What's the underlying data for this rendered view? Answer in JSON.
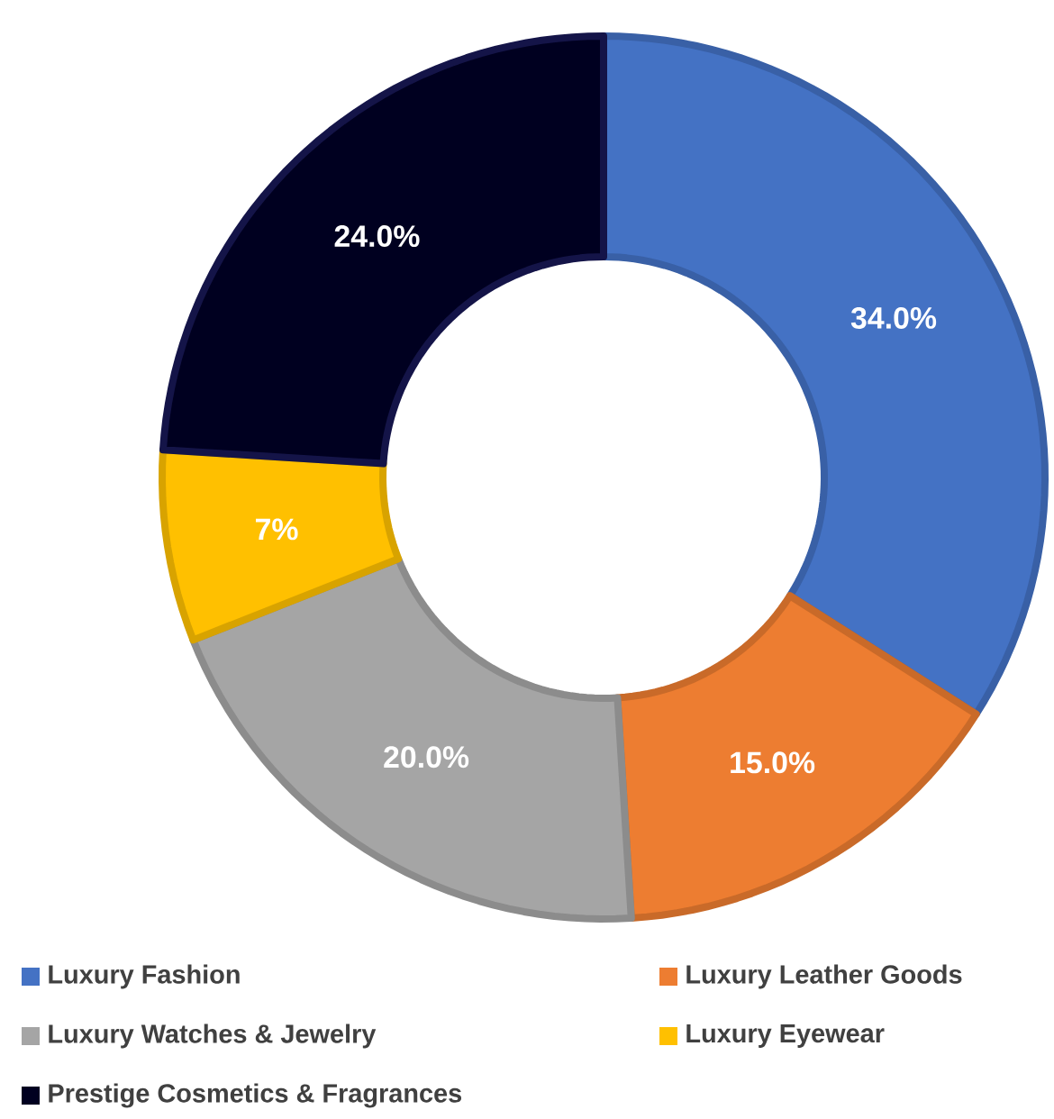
{
  "chart_data": {
    "type": "donut",
    "categories": [
      "Luxury Fashion",
      "Luxury Leather Goods",
      "Luxury Watches & Jewelry",
      "Luxury Eyewear",
      "Prestige Cosmetics & Fragrances"
    ],
    "values": [
      34,
      15,
      20,
      7,
      24
    ],
    "value_labels": [
      "34.0%",
      "15.0%",
      "20.0%",
      "7%",
      "24.0%"
    ],
    "colors": [
      "#4472c4",
      "#ed7d31",
      "#a5a5a5",
      "#ffc000",
      "#000020"
    ],
    "legend": "bottom"
  }
}
